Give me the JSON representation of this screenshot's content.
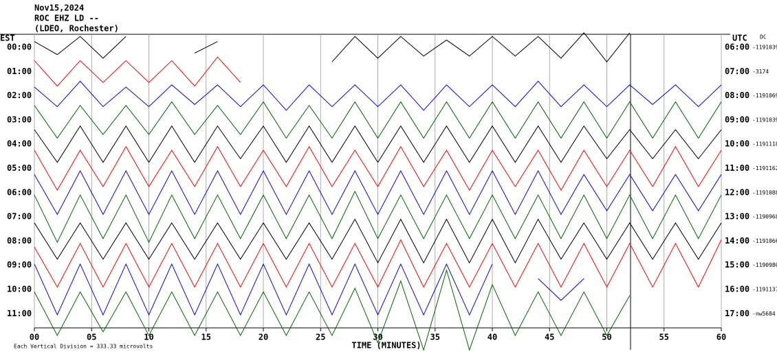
{
  "chart_data": {
    "type": "helicorder",
    "title_lines": [
      "Nov15,2024",
      "ROC EHZ LD --",
      "(LDEO, Rochester)"
    ],
    "left_axis_title": "EST",
    "right_axis_title": "UTC",
    "dc_title": "DC",
    "x_label": "TIME (MINUTES)",
    "note": "Each Vertical Division =  333.33 microvolts",
    "division": 333.33,
    "xlim": [
      0,
      60
    ],
    "xticks": [
      {
        "value": 0,
        "label": "00"
      },
      {
        "value": 5,
        "label": "05"
      },
      10,
      15,
      20,
      25,
      30,
      35,
      40,
      45,
      50,
      55,
      60
    ],
    "grid": true,
    "categories": [
      "00:00",
      "01:00",
      "02:00",
      "03:00",
      "04:00",
      "05:00",
      "06:00",
      "07:00",
      "08:00",
      "09:00",
      "10:00",
      "11:00"
    ],
    "right_labels": [
      "06:00",
      "07:00",
      "08:00",
      "09:00",
      "10:00",
      "11:00",
      "12:00",
      "13:00",
      "14:00",
      "15:00",
      "16:00",
      "17:00"
    ],
    "dc_labels": [
      "-1191039",
      "-3174",
      "-1191069",
      "-1191039",
      "-1191118",
      "-1191162",
      "-1191088",
      "-1190968",
      "-1191066",
      "-1190980",
      "-1191137",
      "-nw5684"
    ],
    "x": [
      0,
      2,
      4,
      6,
      8,
      10,
      12,
      14,
      16,
      18,
      20,
      22,
      24,
      26,
      28,
      30,
      32,
      34,
      36,
      38,
      40,
      42,
      44,
      46,
      48,
      50,
      52,
      54,
      56,
      58,
      60
    ],
    "series": [
      {
        "color": "#000000",
        "values": [
          80,
          100,
          150,
          150,
          150,
          null,
          null,
          80,
          80,
          null,
          null,
          null,
          null,
          200,
          150,
          150,
          150,
          120,
          100,
          120,
          150,
          120,
          150,
          150,
          200,
          200,
          200,
          null,
          null,
          null,
          null
        ]
      },
      {
        "color": "#ff0000",
        "values": [
          150,
          200,
          150,
          150,
          150,
          150,
          150,
          200,
          200,
          150,
          null,
          null,
          null,
          null,
          null,
          null,
          null,
          null,
          null,
          null,
          null,
          null,
          null,
          null,
          null,
          null,
          null,
          null,
          null,
          null,
          null
        ]
      },
      {
        "color": "#0000ff",
        "values": [
          120,
          150,
          200,
          150,
          120,
          150,
          150,
          120,
          150,
          150,
          150,
          200,
          150,
          150,
          150,
          150,
          150,
          200,
          150,
          150,
          150,
          150,
          200,
          150,
          150,
          150,
          150,
          120,
          150,
          150,
          150
        ]
      },
      {
        "color": "#006400",
        "values": [
          200,
          250,
          200,
          200,
          200,
          200,
          250,
          200,
          200,
          200,
          250,
          250,
          200,
          250,
          250,
          250,
          250,
          250,
          250,
          250,
          250,
          250,
          250,
          250,
          250,
          250,
          250,
          250,
          250,
          250,
          250
        ]
      },
      {
        "color": "#000000",
        "values": [
          200,
          250,
          250,
          250,
          250,
          250,
          250,
          250,
          250,
          200,
          250,
          250,
          250,
          250,
          250,
          250,
          250,
          250,
          250,
          250,
          250,
          250,
          250,
          250,
          250,
          200,
          200,
          200,
          200,
          200,
          200
        ]
      },
      {
        "color": "#ff0000",
        "values": [
          250,
          300,
          250,
          250,
          300,
          250,
          250,
          250,
          300,
          250,
          250,
          250,
          300,
          250,
          250,
          250,
          300,
          250,
          250,
          300,
          250,
          250,
          250,
          300,
          250,
          250,
          250,
          250,
          300,
          250,
          250
        ]
      },
      {
        "color": "#0000ff",
        "values": [
          250,
          300,
          300,
          300,
          300,
          300,
          300,
          300,
          300,
          300,
          300,
          300,
          300,
          300,
          300,
          300,
          300,
          300,
          300,
          300,
          300,
          300,
          300,
          300,
          250,
          250,
          250,
          250,
          250,
          250,
          250
        ]
      },
      {
        "color": "#006400",
        "values": [
          300,
          350,
          300,
          300,
          300,
          350,
          300,
          300,
          300,
          300,
          300,
          300,
          300,
          300,
          350,
          300,
          300,
          300,
          300,
          300,
          300,
          300,
          300,
          300,
          300,
          300,
          300,
          300,
          300,
          300,
          300
        ]
      },
      {
        "color": "#000000",
        "values": [
          250,
          250,
          250,
          250,
          250,
          250,
          250,
          250,
          250,
          250,
          250,
          250,
          250,
          250,
          300,
          300,
          300,
          300,
          300,
          300,
          300,
          300,
          300,
          250,
          250,
          250,
          250,
          250,
          250,
          250,
          250
        ]
      },
      {
        "color": "#ff0000",
        "values": [
          250,
          300,
          300,
          300,
          300,
          300,
          300,
          300,
          300,
          300,
          300,
          300,
          300,
          300,
          300,
          300,
          350,
          300,
          300,
          300,
          300,
          300,
          300,
          300,
          300,
          300,
          300,
          300,
          300,
          300,
          350
        ]
      },
      {
        "color": "#0000ff",
        "values": [
          350,
          350,
          350,
          350,
          350,
          350,
          350,
          350,
          350,
          350,
          350,
          350,
          350,
          350,
          350,
          350,
          350,
          350,
          350,
          350,
          350,
          null,
          150,
          150,
          150,
          null,
          null,
          null,
          null,
          null,
          null
        ]
      },
      {
        "color": "#006400",
        "values": [
          300,
          300,
          300,
          250,
          300,
          300,
          300,
          300,
          300,
          300,
          300,
          300,
          300,
          300,
          350,
          400,
          450,
          500,
          600,
          500,
          400,
          300,
          300,
          300,
          300,
          300,
          250,
          null,
          null,
          null,
          null
        ]
      }
    ]
  }
}
